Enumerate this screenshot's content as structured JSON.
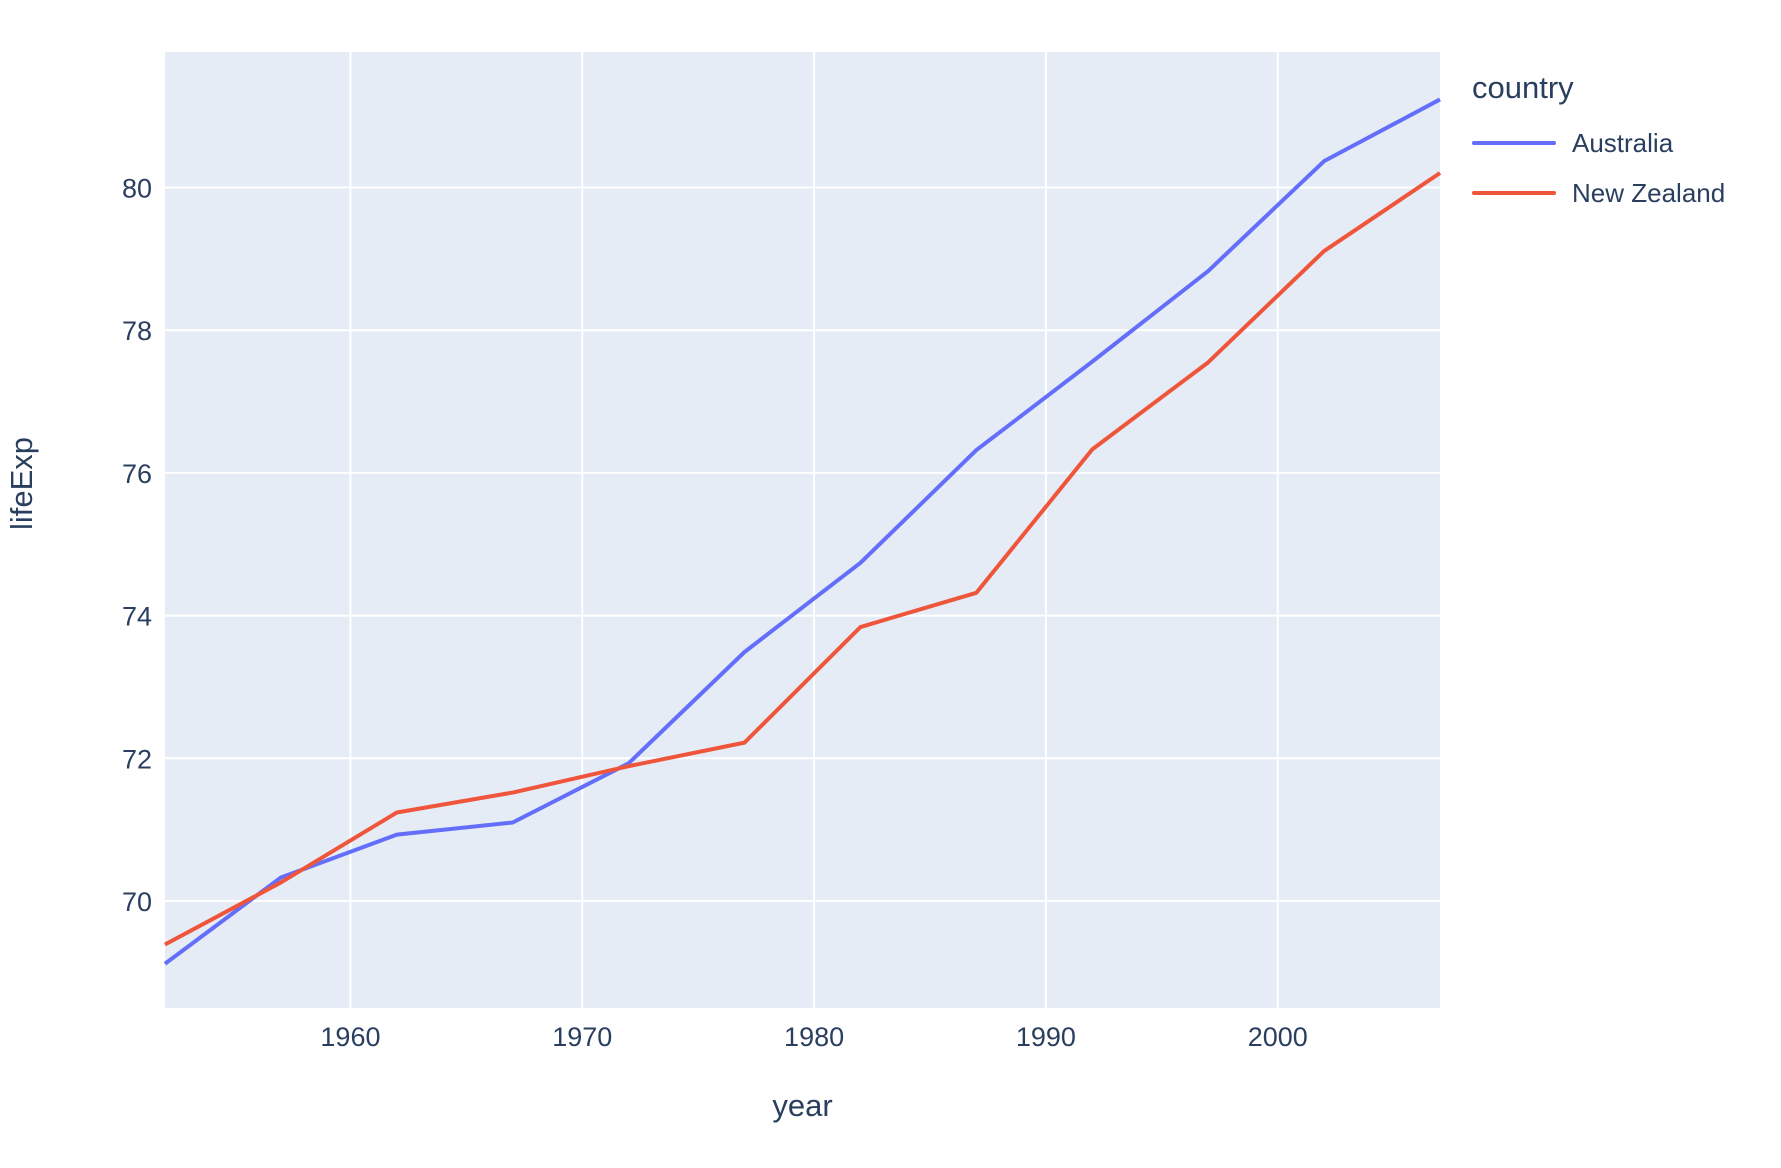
{
  "chart_data": {
    "type": "line",
    "title": "",
    "xlabel": "year",
    "ylabel": "lifeExp",
    "x": [
      1952,
      1957,
      1962,
      1967,
      1972,
      1977,
      1982,
      1987,
      1992,
      1997,
      2002,
      2007
    ],
    "series": [
      {
        "name": "Australia",
        "color": "#636EFA",
        "values": [
          69.12,
          70.33,
          70.93,
          71.1,
          71.93,
          73.49,
          74.74,
          76.32,
          77.56,
          78.83,
          80.37,
          81.235
        ]
      },
      {
        "name": "New Zealand",
        "color": "#EF553B",
        "values": [
          69.39,
          70.26,
          71.24,
          71.52,
          71.89,
          72.22,
          73.84,
          74.32,
          76.33,
          77.55,
          79.11,
          80.204
        ]
      }
    ],
    "xlim": [
      1952,
      2007
    ],
    "ylim": [
      68.5,
      81.9
    ],
    "xticks": [
      1960,
      1970,
      1980,
      1990,
      2000
    ],
    "yticks": [
      70,
      72,
      74,
      76,
      78,
      80
    ],
    "grid": true,
    "legend_position": "right"
  },
  "legend": {
    "title": "country"
  },
  "colors": {
    "page_background": "#FFFFFF",
    "plot_background": "#E5ECF6",
    "grid": "#FFFFFF",
    "text": "#2A3F5F"
  }
}
